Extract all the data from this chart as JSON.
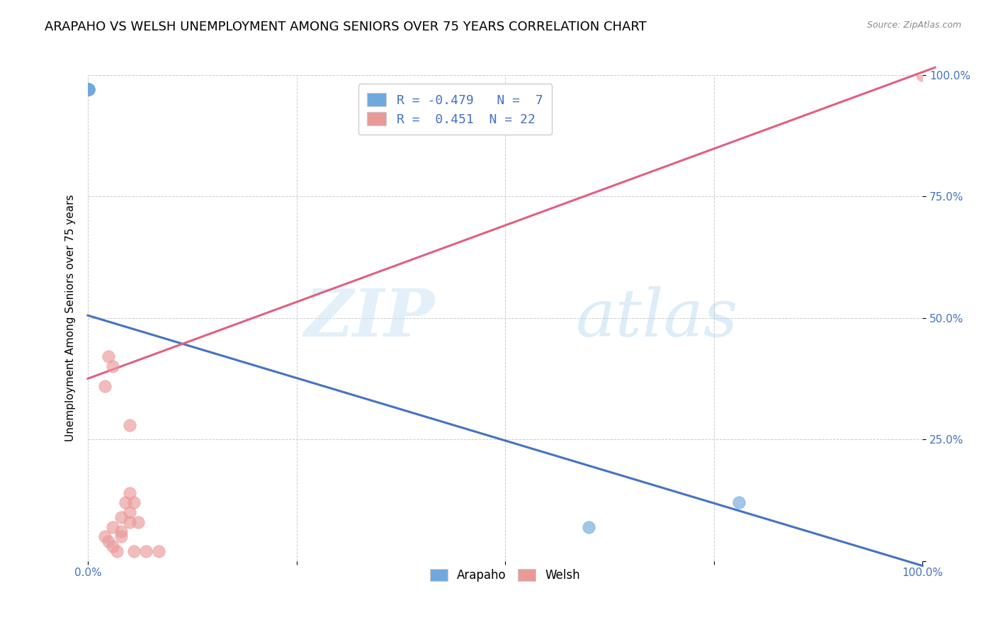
{
  "title": "ARAPAHO VS WELSH UNEMPLOYMENT AMONG SENIORS OVER 75 YEARS CORRELATION CHART",
  "source": "Source: ZipAtlas.com",
  "ylabel": "Unemployment Among Seniors over 75 years",
  "arapaho_R": -0.479,
  "arapaho_N": 7,
  "welsh_R": 0.451,
  "welsh_N": 22,
  "arapaho_color": "#6fa8dc",
  "welsh_color": "#ea9999",
  "arapaho_line_color": "#4472c4",
  "welsh_line_color": "#e06080",
  "arapaho_scatter_x": [
    0.001,
    0.001,
    0.001,
    0.001,
    0.001,
    0.6,
    0.78
  ],
  "arapaho_scatter_y": [
    0.97,
    0.97,
    0.97,
    0.97,
    0.97,
    0.07,
    0.12
  ],
  "welsh_scatter_x": [
    0.02,
    0.025,
    0.03,
    0.035,
    0.03,
    0.04,
    0.04,
    0.05,
    0.04,
    0.05,
    0.05,
    0.06,
    0.03,
    0.045,
    0.02,
    0.025,
    0.05,
    0.055,
    0.055,
    0.07,
    0.085,
    1.0
  ],
  "welsh_scatter_y": [
    0.05,
    0.04,
    0.03,
    0.02,
    0.07,
    0.06,
    0.05,
    0.14,
    0.09,
    0.1,
    0.08,
    0.08,
    0.4,
    0.12,
    0.36,
    0.42,
    0.28,
    0.02,
    0.12,
    0.02,
    0.02,
    1.0
  ],
  "arapaho_line_x": [
    0.0,
    1.0
  ],
  "arapaho_line_y": [
    0.505,
    -0.01
  ],
  "welsh_line_x": [
    0.0,
    1.015
  ],
  "welsh_line_y": [
    0.375,
    1.015
  ],
  "xlim": [
    0.0,
    1.0
  ],
  "ylim": [
    0.0,
    1.0
  ],
  "xtick_positions": [
    0.0,
    0.25,
    0.5,
    0.75,
    1.0
  ],
  "xticklabels": [
    "0.0%",
    "",
    "",
    "",
    "100.0%"
  ],
  "ytick_positions": [
    0.0,
    0.25,
    0.5,
    0.75,
    1.0
  ],
  "yticklabels": [
    "",
    "25.0%",
    "50.0%",
    "75.0%",
    "100.0%"
  ],
  "watermark_zip": "ZIP",
  "watermark_atlas": "atlas",
  "title_fontsize": 13,
  "label_fontsize": 11,
  "tick_fontsize": 11,
  "legend_fontsize": 13,
  "background_color": "#ffffff",
  "grid_color": "#cccccc"
}
